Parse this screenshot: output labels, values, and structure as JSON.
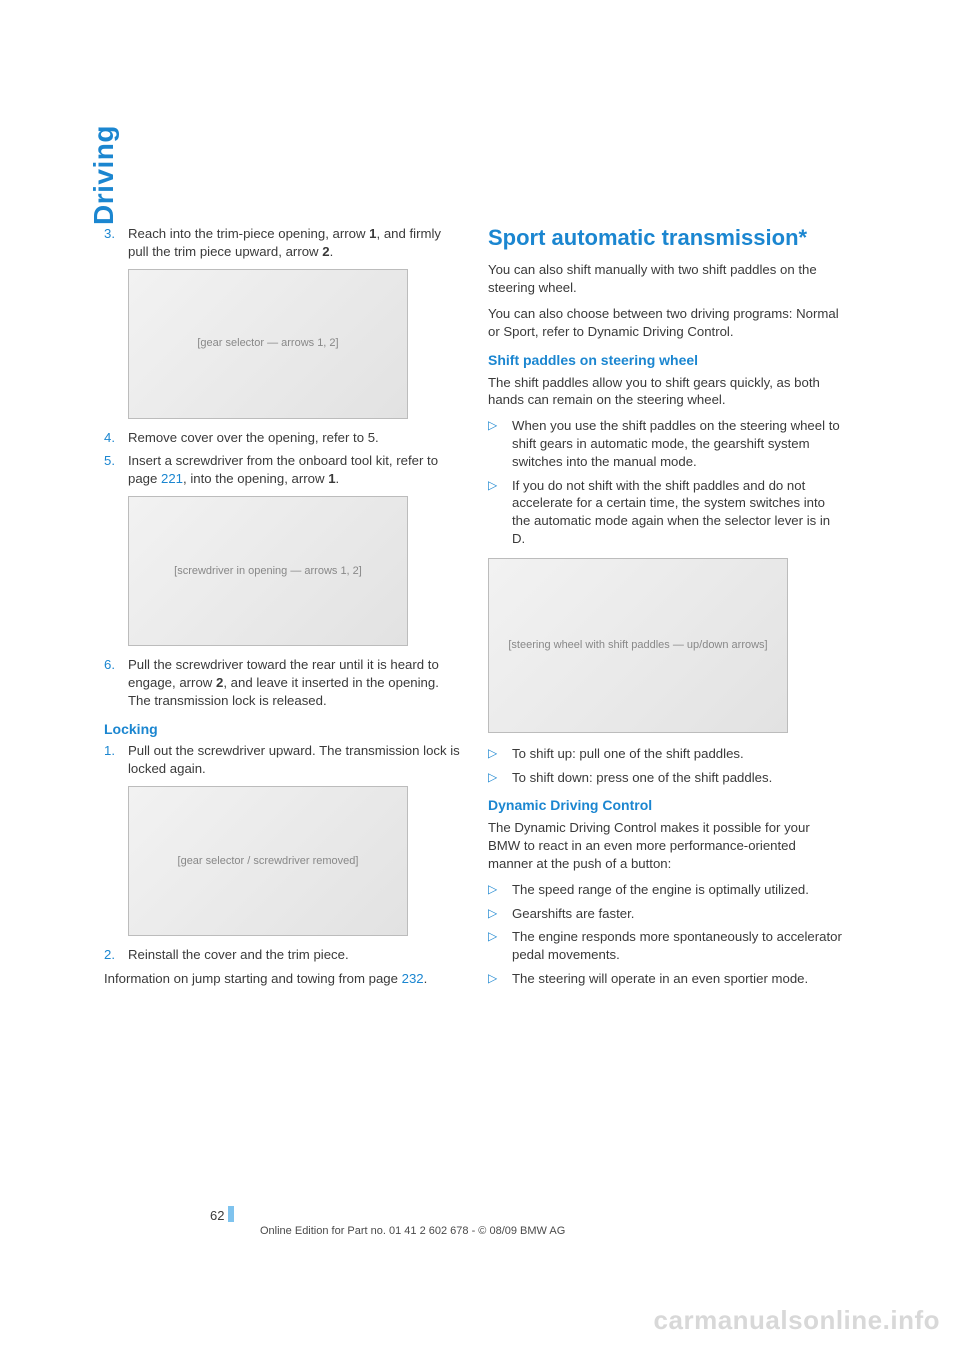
{
  "sidebar": {
    "label": "Driving"
  },
  "left": {
    "step3": {
      "num": "3.",
      "text_a": "Reach into the trim-piece opening, arrow ",
      "b1": "1",
      "text_b": ", and firmly pull the trim piece upward, arrow ",
      "b2": "2",
      "text_c": "."
    },
    "fig1_alt": "[gear selector — arrows 1, 2]",
    "step4": {
      "num": "4.",
      "text": "Remove cover over the opening, refer to 5."
    },
    "step5": {
      "num": "5.",
      "text_a": "Insert a screwdriver from the onboard tool kit, refer to page ",
      "link": "221",
      "text_b": ", into the opening, arrow ",
      "b1": "1",
      "text_c": "."
    },
    "fig2_alt": "[screwdriver in opening — arrows 1, 2]",
    "step6": {
      "num": "6.",
      "text_a": "Pull the screwdriver toward the rear until it is heard to engage, arrow ",
      "b1": "2",
      "text_b": ", and leave it inserted in the opening. The transmission lock is released."
    },
    "locking_h": "Locking",
    "lock1": {
      "num": "1.",
      "text": "Pull out the screwdriver upward. The transmission lock is locked again."
    },
    "fig3_alt": "[gear selector / screwdriver removed]",
    "lock2": {
      "num": "2.",
      "text": "Reinstall the cover and the trim piece."
    },
    "jump_a": "Information on jump starting and towing from page ",
    "jump_link": "232",
    "jump_b": "."
  },
  "right": {
    "h": "Sport automatic transmission*",
    "p1": "You can also shift manually with two shift paddles on the steering wheel.",
    "p2": "You can also choose between two driving programs: Normal or Sport, refer to Dynamic Driving Control.",
    "shift_h": "Shift paddles on steering wheel",
    "shift_p": "The shift paddles allow you to shift gears quickly, as both hands can remain on the steering wheel.",
    "shift_b1": "When you use the shift paddles on the steering wheel to shift gears in automatic mode, the gearshift system switches into the manual mode.",
    "shift_b2": "If you do not shift with the shift paddles and do not accelerate for a certain time, the system switches into the automatic mode again when the selector lever is in D.",
    "fig_alt": "[steering wheel with shift paddles — up/down arrows]",
    "shift_b3": "To shift up: pull one of the shift paddles.",
    "shift_b4": "To shift down: press one of the shift paddles.",
    "ddc_h": "Dynamic Driving Control",
    "ddc_p": "The Dynamic Driving Control makes it possible for your BMW to react in an even more performance-oriented manner at the push of a button:",
    "ddc_b1": "The speed range of the engine is optimally utilized.",
    "ddc_b2": "Gearshifts are faster.",
    "ddc_b3": "The engine responds more spontaneously to accelerator pedal movements.",
    "ddc_b4": "The steering will operate in an even sportier mode."
  },
  "pagenum": "62",
  "footer": "Online Edition for Part no. 01 41 2 602 678 - © 08/09 BMW AG",
  "watermark": "carmanualsonline.info",
  "colors": {
    "accent": "#1b86d0",
    "text": "#3a3a3a",
    "watermark": "#d8d8d8",
    "figure_bg1": "#f2f2f2",
    "figure_bg2": "#e2e2e2",
    "figure_border": "#bcbcbc"
  }
}
